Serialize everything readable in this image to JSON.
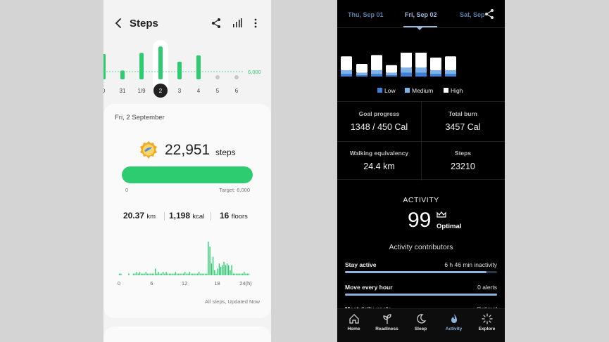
{
  "left": {
    "header": {
      "title": "Steps"
    },
    "week_chart": {
      "goal_label": "6,000",
      "day_labels": [
        "0",
        "31",
        "1/9",
        "2",
        "3",
        "4",
        "5",
        "6"
      ],
      "selected_index": 3,
      "values": [
        1,
        0.35,
        1.05,
        1.3,
        0.7,
        0.95,
        0,
        0
      ]
    },
    "card": {
      "date": "Fri, 2 September",
      "steps": "22,951",
      "steps_unit": "steps",
      "progress_fraction": 1.0,
      "progress_start": "0",
      "progress_target": "Target: 6,000",
      "distance": "20.37",
      "distance_unit": "km",
      "calories": "1,198",
      "calories_unit": "kcal",
      "floors": "16",
      "floors_unit": "floors",
      "hourly_ticks": [
        "0",
        "6",
        "12",
        "18",
        "24(h)"
      ],
      "hourly_values": [
        0.05,
        0.05,
        0,
        0,
        0,
        0,
        0.05,
        0,
        0,
        0.05,
        0.05,
        0.1,
        0.05,
        0.1,
        0.05,
        0.05,
        0.05,
        0.1,
        0.05,
        0.05,
        0.05,
        0.05,
        0.05,
        0.2,
        0.05,
        0.1,
        0.05,
        0.05,
        0.1,
        0.05,
        0.1,
        0.05,
        0.05,
        0.05,
        0.05,
        0.05,
        0.1,
        0.05,
        0.05,
        0.05,
        0.05,
        0.05,
        0.1,
        0.05,
        0.05,
        0.1,
        0.05,
        0.05,
        0.05,
        0.05,
        0.05,
        0.1,
        0.05,
        0.05,
        0.05,
        0.05,
        0.05,
        1.0,
        0.85,
        0.35,
        0.55,
        0.15,
        0.05,
        0.2,
        0.35,
        0.25,
        0.3,
        0.4,
        0.3,
        0.35,
        0.3,
        0.15,
        0.3,
        0.05,
        0.05,
        0.05,
        0.05,
        0.05,
        0.05,
        0.05,
        0.1,
        0.05,
        0.05,
        0.05
      ],
      "updated_text": "All steps, Updated Now"
    }
  },
  "right": {
    "tabs": [
      "Thu, Sep 01",
      "Fri, Sep 02",
      "Sat, Sep"
    ],
    "active_tab": 1,
    "daily_bars": [
      {
        "high": 0.55,
        "medium": 0.15,
        "low": 0.1
      },
      {
        "high": 0.35,
        "medium": 0.1,
        "low": 0.05
      },
      {
        "high": 0.6,
        "medium": 0.15,
        "low": 0.1
      },
      {
        "high": 0.3,
        "medium": 0.1,
        "low": 0.05
      },
      {
        "high": 0.65,
        "medium": 0.2,
        "low": 0.15
      },
      {
        "high": 0.7,
        "medium": 0.2,
        "low": 0.15
      },
      {
        "high": 0.5,
        "medium": 0.15,
        "low": 0.1
      },
      {
        "high": 0.55,
        "medium": 0.15,
        "low": 0.1
      }
    ],
    "legend": [
      "Low",
      "Medium",
      "High"
    ],
    "colors": {
      "low": "#3d7fd6",
      "medium": "#7bb3ea",
      "high": "#ffffff",
      "accent": "#8fb4e0"
    },
    "metrics": {
      "goal_progress_label": "Goal progress",
      "goal_progress_value": "1348 / 450 Cal",
      "total_burn_label": "Total burn",
      "total_burn_value": "3457 Cal",
      "walking_label": "Walking equivalency",
      "walking_value": "24.4 km",
      "steps_label": "Steps",
      "steps_value": "23210"
    },
    "activity": {
      "title": "ACTIVITY",
      "score": "99",
      "label": "Optimal"
    },
    "contributors_title": "Activity contributors",
    "contributors": [
      {
        "label": "Stay active",
        "value": "6 h 46 min inactivity",
        "fraction": 0.93
      },
      {
        "label": "Move every hour",
        "value": "0 alerts",
        "fraction": 1.0
      },
      {
        "label": "Meet daily goals",
        "value": "Optimal",
        "fraction": 1.0
      }
    ],
    "nav": [
      "Home",
      "Readiness",
      "Sleep",
      "Activity",
      "Explore"
    ],
    "nav_active": 3
  }
}
